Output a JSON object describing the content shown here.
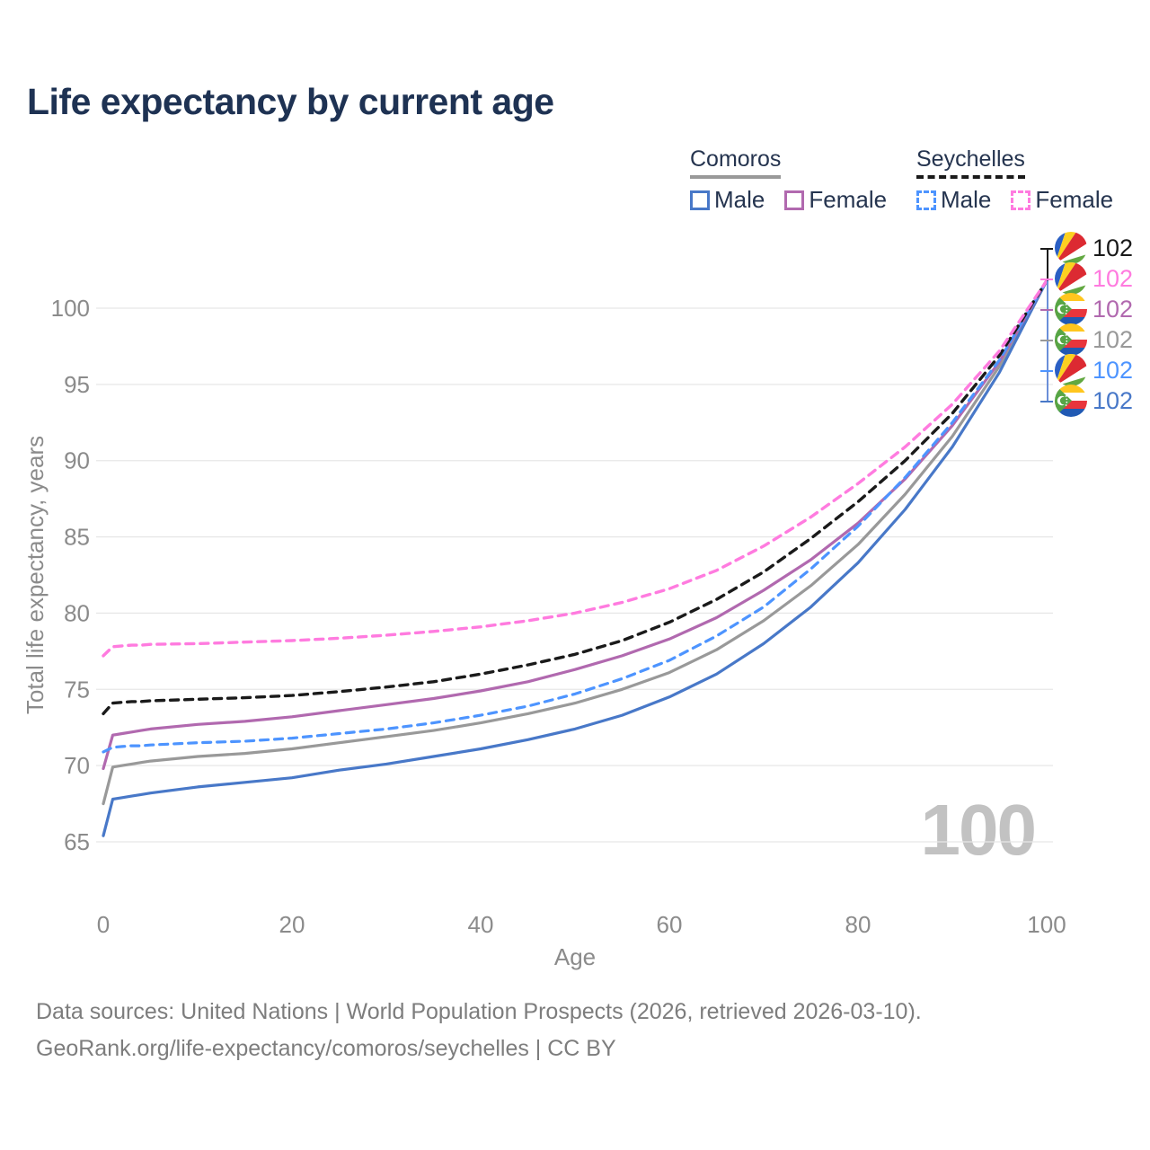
{
  "title": "Life expectancy by current age",
  "legend": {
    "groups": [
      {
        "label": "Comoros",
        "style": "solid",
        "items": [
          {
            "label": "Male"
          },
          {
            "label": "Female"
          }
        ]
      },
      {
        "label": "Seychelles",
        "style": "dashed",
        "items": [
          {
            "label": "Male"
          },
          {
            "label": "Female"
          }
        ]
      }
    ]
  },
  "chart_data": {
    "type": "line",
    "title": "Life expectancy by current age",
    "xlabel": "Age",
    "ylabel": "Total life expectancy, years",
    "x_ticks": [
      0,
      20,
      40,
      60,
      80,
      100
    ],
    "y_ticks": [
      65,
      70,
      75,
      80,
      85,
      90,
      95,
      100
    ],
    "xlim": [
      0,
      100
    ],
    "ylim": [
      65,
      102
    ],
    "grid": "horizontal",
    "legend_position": "top-right",
    "watermark": "100",
    "x": [
      0,
      1,
      2,
      3,
      4,
      5,
      10,
      15,
      20,
      25,
      30,
      35,
      40,
      45,
      50,
      55,
      60,
      65,
      70,
      75,
      80,
      85,
      90,
      95,
      100
    ],
    "series": [
      {
        "name": "Comoros",
        "country": "Comoros",
        "sex": "both",
        "color": "#999999",
        "dash": false,
        "width": 3.2,
        "values": [
          67.5,
          69.9,
          70.0,
          70.1,
          70.2,
          70.3,
          70.6,
          70.8,
          71.1,
          71.5,
          71.9,
          72.3,
          72.8,
          73.4,
          74.1,
          75.0,
          76.1,
          77.6,
          79.5,
          81.8,
          84.5,
          87.8,
          91.6,
          96.2,
          101.8
        ]
      },
      {
        "name": "Comoros Male",
        "country": "Comoros",
        "sex": "male",
        "color": "#4878c8",
        "dash": false,
        "width": 3.2,
        "values": [
          65.4,
          67.8,
          67.9,
          68.0,
          68.1,
          68.2,
          68.6,
          68.9,
          69.2,
          69.7,
          70.1,
          70.6,
          71.1,
          71.7,
          72.4,
          73.3,
          74.5,
          76.0,
          78.0,
          80.4,
          83.3,
          86.8,
          90.9,
          95.8,
          101.8
        ]
      },
      {
        "name": "Comoros Female",
        "country": "Comoros",
        "sex": "female",
        "color": "#b169af",
        "dash": false,
        "width": 3.2,
        "values": [
          69.8,
          72.0,
          72.1,
          72.2,
          72.3,
          72.4,
          72.7,
          72.9,
          73.2,
          73.6,
          74.0,
          74.4,
          74.9,
          75.5,
          76.3,
          77.2,
          78.3,
          79.7,
          81.5,
          83.5,
          85.9,
          88.8,
          92.3,
          96.5,
          101.8
        ]
      },
      {
        "name": "Seychelles Male",
        "country": "Seychelles",
        "sex": "male",
        "color": "#4d94ff",
        "dash": true,
        "width": 3.2,
        "values": [
          70.9,
          71.2,
          71.25,
          71.3,
          71.3,
          71.35,
          71.5,
          71.6,
          71.8,
          72.1,
          72.4,
          72.8,
          73.3,
          73.9,
          74.7,
          75.7,
          76.9,
          78.5,
          80.4,
          82.9,
          85.7,
          88.9,
          92.5,
          96.6,
          101.8
        ]
      },
      {
        "name": "Seychelles",
        "country": "Seychelles",
        "sex": "both",
        "color": "#1a1a1a",
        "dash": true,
        "width": 3.4,
        "values": [
          73.4,
          74.1,
          74.15,
          74.2,
          74.2,
          74.25,
          74.35,
          74.45,
          74.6,
          74.85,
          75.15,
          75.5,
          76.0,
          76.6,
          77.3,
          78.2,
          79.4,
          80.9,
          82.7,
          84.9,
          87.3,
          90.0,
          93.1,
          96.9,
          101.8
        ]
      },
      {
        "name": "Seychelles Female",
        "country": "Seychelles",
        "sex": "female",
        "color": "#ff7bdf",
        "dash": true,
        "width": 3.4,
        "values": [
          77.2,
          77.8,
          77.85,
          77.9,
          77.9,
          77.95,
          78.0,
          78.1,
          78.2,
          78.35,
          78.55,
          78.8,
          79.1,
          79.5,
          80.0,
          80.7,
          81.6,
          82.8,
          84.4,
          86.3,
          88.5,
          90.9,
          93.7,
          97.2,
          101.8
        ]
      }
    ]
  },
  "end_labels": [
    {
      "series": "Seychelles",
      "flag": "seychelles",
      "value": "102",
      "color": "#1a1a1a"
    },
    {
      "series": "Seychelles Female",
      "flag": "seychelles",
      "value": "102",
      "color": "#ff7bdf"
    },
    {
      "series": "Comoros Female",
      "flag": "comoros",
      "value": "102",
      "color": "#b169af"
    },
    {
      "series": "Comoros",
      "flag": "comoros",
      "value": "102",
      "color": "#999999"
    },
    {
      "series": "Seychelles Male",
      "flag": "seychelles",
      "value": "102",
      "color": "#4d94ff"
    },
    {
      "series": "Comoros Male",
      "flag": "comoros",
      "value": "102",
      "color": "#4878c8"
    }
  ],
  "footer": {
    "line1": "Data sources: United Nations | World Population Prospects (2026, retrieved 2026-03-10).",
    "line2": "GeoRank.org/life-expectancy/comoros/seychelles | CC BY"
  }
}
